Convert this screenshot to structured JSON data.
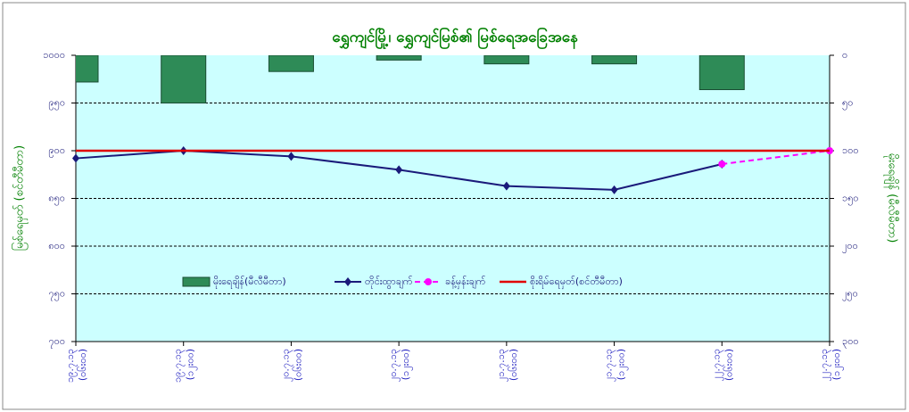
{
  "chart_data": {
    "type": "bar_line",
    "title": "ရွှေကျင်မြို့၊ ရွှေကျင်မြစ်၏ မြစ်ရေအခြေအနေ",
    "y_label": "မြစ်ရေမှတ် (စင်တီမီတာ)",
    "y2_label": "မိုးရေချိန် (မီလီမီတာ)",
    "categories": [
      "၁၉.၇.၁၃",
      "၁၉.၇.၁၃",
      "၂၀.၇.၁၃",
      "၂၀.၇.၁၃",
      "၂၁.၇.၁၃",
      "၂၁.၇.၁၃",
      "၂၂.၇.၁၃",
      "၂၂.၇.၁၃"
    ],
    "times": [
      "(၀၆း၀၀)",
      "(၁၂း၀၀)",
      "(၀၆း၀၀)",
      "(၁၂း၀၀)",
      "(၀၆း၀၀)",
      "(၁၂း၀၀)",
      "(၀၆း၀၀)",
      "(၁၂း၀၀)"
    ],
    "series": [
      {
        "name": "မိုးရေချိန်(မီလီမီတာ)",
        "kind": "bar",
        "axis": "y2",
        "color": "#2e8b57",
        "values": [
          28,
          50,
          17,
          5,
          9,
          9,
          36,
          0
        ]
      },
      {
        "name": "တိုင်းထွာချက်",
        "kind": "line",
        "color": "#1a1a7a",
        "values": [
          892,
          900,
          894,
          880,
          863,
          859,
          886,
          null
        ]
      },
      {
        "name": "ခန့်မှန်းချက်",
        "kind": "dashed",
        "color": "#ff00ff",
        "values": [
          null,
          null,
          null,
          null,
          null,
          null,
          886,
          900
        ]
      },
      {
        "name": "စိုးရိမ်ရေမှတ်(စင်တီမီတာ)",
        "kind": "level",
        "color": "#e00000",
        "value": 900
      }
    ],
    "ylim": [
      700,
      1000
    ],
    "yticks": [
      {
        "value": 1000,
        "label": "၁၀၀၀"
      },
      {
        "value": 950,
        "label": "၉၅၀"
      },
      {
        "value": 900,
        "label": "၉၀၀"
      },
      {
        "value": 850,
        "label": "၈၅၀"
      },
      {
        "value": 800,
        "label": "၈၀၀"
      },
      {
        "value": 750,
        "label": "၇၅၀"
      },
      {
        "value": 700,
        "label": "၇၀၀"
      }
    ],
    "y2lim": [
      0,
      300
    ],
    "y2ticks": [
      {
        "value": 0,
        "label": "၀"
      },
      {
        "value": 50,
        "label": "၅၀"
      },
      {
        "value": 100,
        "label": "၁၀၀"
      },
      {
        "value": 150,
        "label": "၁၅၀"
      },
      {
        "value": 200,
        "label": "၂၀၀"
      },
      {
        "value": 250,
        "label": "၂၅၀"
      },
      {
        "value": 300,
        "label": "၃၀၀"
      }
    ],
    "grid": true
  }
}
